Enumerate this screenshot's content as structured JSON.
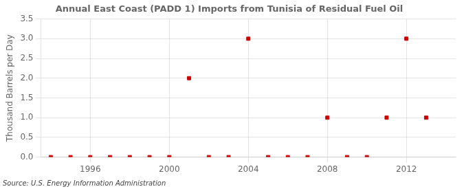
{
  "chart_data": {
    "type": "scatter",
    "title": "Annual East Coast (PADD 1) Imports from Tunisia of Residual Fuel Oil",
    "ylabel": "Thousand Barrels per Day",
    "annotations": [
      "Source: U.S. Energy Information Administration"
    ],
    "x": [
      1994,
      1995,
      1996,
      1997,
      1998,
      1999,
      2000,
      2001,
      2002,
      2003,
      2004,
      2005,
      2006,
      2007,
      2008,
      2009,
      2010,
      2011,
      2012,
      2013
    ],
    "values": [
      0,
      0,
      0,
      0,
      0,
      0,
      0,
      2,
      0,
      0,
      3,
      0,
      0,
      0,
      1,
      0,
      0,
      1,
      3,
      1
    ],
    "color": "#cc0000",
    "marker": "square",
    "xlim": [
      1993.5,
      2014.5
    ],
    "xticks": [
      1996,
      2000,
      2004,
      2008,
      2012
    ],
    "ylim": [
      0,
      3.5
    ],
    "yticks": [
      {
        "value": 0.0,
        "label": "0.0"
      },
      0.5,
      {
        "value": 1.0,
        "label": "1.0"
      },
      1.5,
      {
        "value": 2.0,
        "label": "2.0"
      },
      2.5,
      {
        "value": 3.0,
        "label": "3.0"
      },
      3.5
    ],
    "grid": true
  }
}
